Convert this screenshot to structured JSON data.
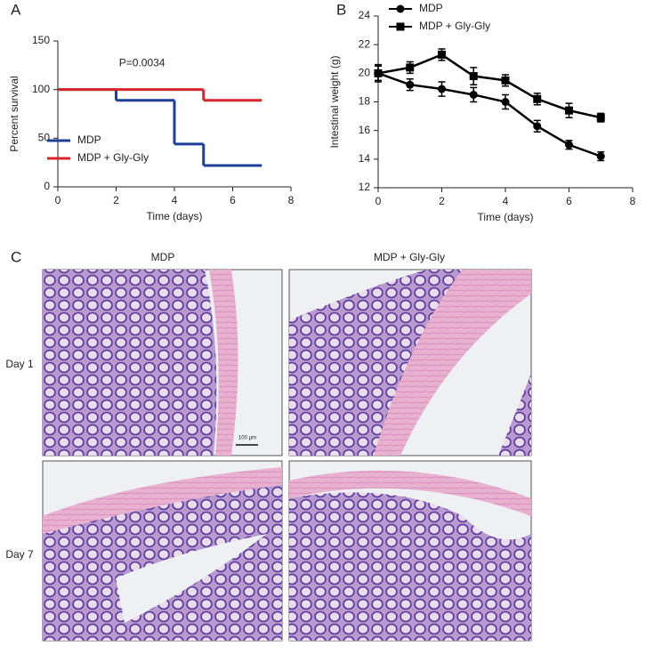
{
  "chart_data": [
    {
      "type": "step",
      "panel_label": "A",
      "xlabel": "Time (days)",
      "ylabel": "Percent survival",
      "annotation": "P=0.0034",
      "x": [
        0,
        2,
        4,
        5,
        7
      ],
      "series": [
        {
          "name": "MDP",
          "color": "#1f3f97",
          "values": [
            100,
            89,
            44,
            22,
            22
          ]
        },
        {
          "name": "MDP + Gly-Gly",
          "color": "#d7262b",
          "values": [
            100,
            100,
            100,
            89,
            89
          ]
        }
      ],
      "xlim": [
        0,
        8
      ],
      "xticks": [
        0,
        2,
        4,
        6,
        8
      ],
      "ylim": [
        0,
        150
      ],
      "yticks": [
        0,
        50,
        100,
        150
      ],
      "legend": "lower left"
    },
    {
      "type": "line",
      "panel_label": "B",
      "xlabel": "Time (days)",
      "ylabel": "Intestinal weight (g)",
      "x": [
        0,
        1,
        2,
        3,
        4,
        5,
        6,
        7
      ],
      "series": [
        {
          "name": "MDP",
          "color": "#000000",
          "marker": "circle",
          "values": [
            20,
            19.2,
            18.9,
            18.5,
            18.0,
            16.3,
            15.0,
            14.2
          ],
          "errors": [
            0.5,
            0.4,
            0.5,
            0.5,
            0.5,
            0.4,
            0.3,
            0.3
          ]
        },
        {
          "name": "MDP + Gly-Gly",
          "color": "#000000",
          "marker": "square",
          "values": [
            20,
            20.4,
            21.3,
            19.8,
            19.5,
            18.2,
            17.4,
            16.9
          ],
          "errors": [
            0.6,
            0.4,
            0.4,
            0.6,
            0.4,
            0.4,
            0.5,
            0.3
          ]
        }
      ],
      "xlim": [
        0,
        8
      ],
      "xticks": [
        0,
        2,
        4,
        6,
        8
      ],
      "ylim": [
        12,
        24
      ],
      "yticks": [
        12,
        14,
        16,
        18,
        20,
        22,
        24
      ],
      "legend": "upper left"
    }
  ],
  "panel_c": {
    "label": "C",
    "columns": [
      "MDP",
      "MDP + Gly-Gly"
    ],
    "rows": [
      "Day 1",
      "Day 7"
    ],
    "scale_bar": "100 μm"
  }
}
